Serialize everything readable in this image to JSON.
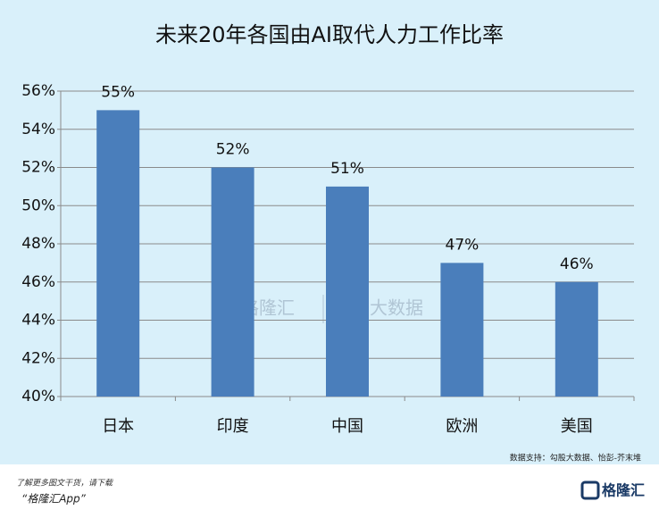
{
  "chart_data": {
    "type": "bar",
    "title": "未来20年各国由AI取代人力工作比率",
    "categories": [
      "日本",
      "印度",
      "中国",
      "欧洲",
      "美国"
    ],
    "values": [
      55,
      52,
      51,
      47,
      46
    ],
    "value_labels": [
      "55%",
      "52%",
      "51%",
      "47%",
      "46%"
    ],
    "color": "#4a7ebb",
    "ylim": [
      40,
      56
    ],
    "yticks": [
      {
        "value": 40,
        "label": "40%"
      },
      {
        "value": 42,
        "label": "42%"
      },
      {
        "value": 44,
        "label": "44%"
      },
      {
        "value": 46,
        "label": "46%"
      },
      {
        "value": 48,
        "label": "48%"
      },
      {
        "value": 50,
        "label": "50%"
      },
      {
        "value": 52,
        "label": "52%"
      },
      {
        "value": 54,
        "label": "54%"
      },
      {
        "value": 56,
        "label": "56%"
      }
    ],
    "grid": true,
    "source": "数据支持：勾股大数据、怡彭-芥末堆"
  },
  "watermark": {
    "brand": "格隆汇",
    "partner": "勾股大数据"
  },
  "footer": {
    "line1": "了解更多图文干货，请下载",
    "line2": "“格隆汇App”",
    "logo": "格隆汇"
  }
}
